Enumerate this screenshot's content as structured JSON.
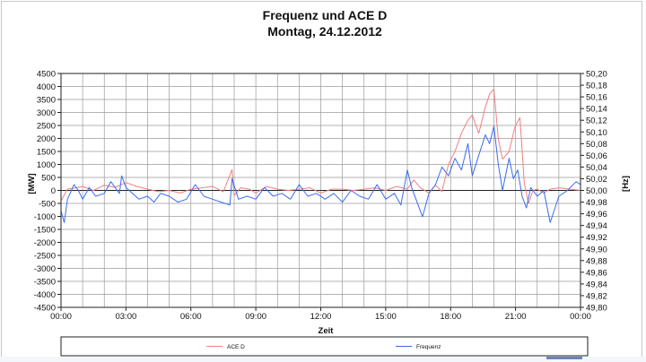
{
  "chart_data": {
    "type": "line",
    "title": "Frequenz und ACE D",
    "subtitle": "Montag, 24.12.2012",
    "xlabel": "Zeit",
    "ylabel_left": "[MW]",
    "ylabel_right": "[Hz]",
    "x_ticks": [
      "00:00",
      "03:00",
      "06:00",
      "09:00",
      "12:00",
      "15:00",
      "18:00",
      "21:00",
      "00:00"
    ],
    "y_left_ticks": [
      "4500",
      "4000",
      "3500",
      "3000",
      "2500",
      "2000",
      "1500",
      "1000",
      "500",
      "0",
      "-500",
      "-1000",
      "-1500",
      "-2000",
      "-2500",
      "-3000",
      "-3500",
      "-4000",
      "-4500"
    ],
    "y_right_ticks": [
      "50,20",
      "50,18",
      "50,16",
      "50,14",
      "50,12",
      "50,10",
      "50,08",
      "50,06",
      "50,04",
      "50,02",
      "50,00",
      "49,98",
      "49,96",
      "49,94",
      "49,92",
      "49,90",
      "49,88",
      "49,86",
      "49,84",
      "49,82",
      "49,80"
    ],
    "ylim_left": [
      -4500,
      4500
    ],
    "ylim_right": [
      49.8,
      50.2
    ],
    "xlim_hours": [
      0,
      24
    ],
    "grid": true,
    "legend_position": "bottom",
    "colors": {
      "ace": "#f08080",
      "frequenz": "#3a6cf0",
      "grid": "#9a9a9a",
      "plot_border": "#222222"
    },
    "series": [
      {
        "name": "ACE D",
        "axis": "left",
        "x_hours": [
          0,
          0.3,
          0.7,
          1,
          1.5,
          2,
          2.5,
          3,
          3.5,
          4,
          4.5,
          5,
          5.5,
          6,
          6.5,
          7,
          7.5,
          7.9,
          8,
          8.3,
          8.7,
          9,
          9.5,
          10,
          10.5,
          11,
          11.5,
          12,
          12.5,
          13,
          13.5,
          14,
          14.5,
          15,
          15.5,
          16,
          16.3,
          16.6,
          17,
          17.3,
          17.6,
          17.9,
          18.2,
          18.5,
          18.8,
          19,
          19.3,
          19.6,
          19.8,
          20,
          20.2,
          20.4,
          20.7,
          20.9,
          21,
          21.2,
          21.4,
          21.6,
          21.8,
          22,
          22.3,
          22.6,
          23,
          23.5,
          24
        ],
        "values": [
          -400,
          50,
          100,
          150,
          0,
          200,
          120,
          300,
          150,
          50,
          -50,
          0,
          -100,
          50,
          100,
          150,
          -50,
          800,
          -200,
          100,
          50,
          -100,
          150,
          50,
          0,
          50,
          100,
          -100,
          50,
          50,
          0,
          50,
          100,
          0,
          150,
          50,
          400,
          100,
          -100,
          200,
          -50,
          1000,
          1500,
          2200,
          2700,
          2900,
          2200,
          3200,
          3700,
          3900,
          2000,
          1200,
          1500,
          2200,
          2500,
          2800,
          300,
          -500,
          0,
          50,
          -100,
          50,
          100,
          50,
          0
        ]
      },
      {
        "name": "Frequenz",
        "axis": "right",
        "x_hours": [
          0,
          0.15,
          0.3,
          0.6,
          0.8,
          1,
          1.3,
          1.6,
          2,
          2.3,
          2.7,
          2.8,
          3,
          3.3,
          3.6,
          4,
          4.3,
          4.6,
          5,
          5.4,
          5.8,
          6.2,
          6.6,
          7,
          7.4,
          7.8,
          7.9,
          8.2,
          8.6,
          9,
          9.4,
          9.8,
          10.2,
          10.6,
          11,
          11.4,
          11.8,
          12.2,
          12.6,
          13,
          13.4,
          13.8,
          14.2,
          14.6,
          15,
          15.4,
          15.7,
          16,
          16.2,
          16.4,
          16.7,
          17,
          17.3,
          17.6,
          17.9,
          18.2,
          18.5,
          18.8,
          19,
          19.3,
          19.6,
          19.8,
          20,
          20.2,
          20.4,
          20.7,
          20.9,
          21.1,
          21.3,
          21.5,
          21.7,
          22,
          22.3,
          22.6,
          23,
          23.4,
          23.8,
          24
        ],
        "values": [
          49.965,
          49.945,
          49.985,
          50.01,
          50.0,
          49.985,
          50.005,
          49.99,
          49.995,
          50.015,
          49.995,
          50.025,
          50.005,
          49.995,
          49.985,
          49.99,
          49.98,
          49.995,
          49.99,
          49.98,
          49.985,
          50.01,
          49.99,
          49.985,
          49.98,
          49.975,
          50.02,
          49.985,
          49.99,
          49.985,
          50.005,
          49.99,
          49.995,
          49.985,
          50.01,
          49.99,
          49.995,
          49.985,
          49.995,
          49.98,
          50.0,
          49.99,
          49.985,
          50.01,
          49.985,
          49.995,
          49.975,
          50.035,
          50.005,
          49.985,
          49.955,
          49.995,
          50.01,
          50.04,
          50.025,
          50.055,
          50.035,
          50.08,
          50.025,
          50.06,
          50.095,
          50.08,
          50.11,
          50.045,
          50.0,
          50.055,
          50.02,
          50.035,
          49.99,
          49.97,
          50.005,
          49.99,
          50.0,
          49.945,
          49.99,
          50.0,
          50.015,
          50.01
        ]
      }
    ]
  }
}
